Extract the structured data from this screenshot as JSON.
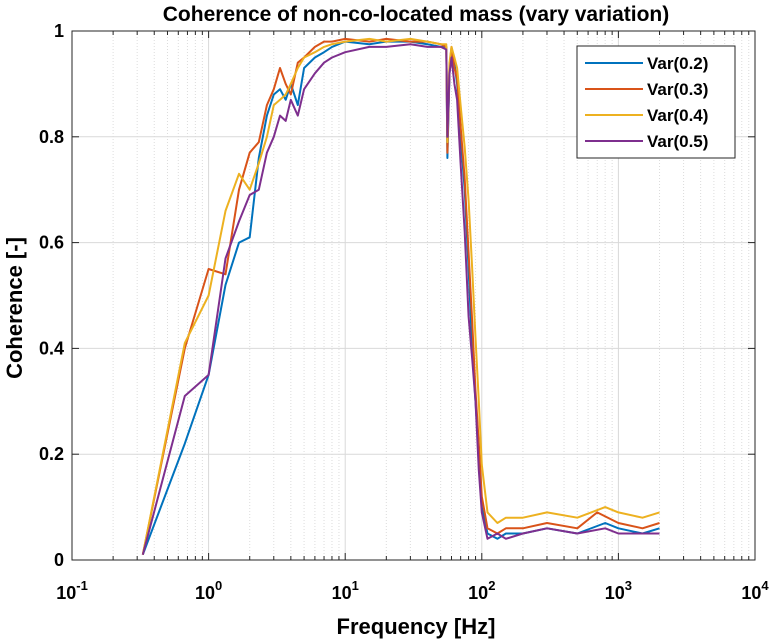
{
  "chart_data": {
    "type": "line",
    "title": "Coherence of non-co-located mass (vary variation)",
    "xlabel": "Frequency [Hz]",
    "ylabel": "Coherence [-]",
    "xscale": "log",
    "xlim": [
      0.1,
      10000
    ],
    "ylim": [
      0,
      1
    ],
    "x_ticks": [
      {
        "base": "10",
        "exp": "-1"
      },
      {
        "base": "10",
        "exp": "0"
      },
      {
        "base": "10",
        "exp": "1"
      },
      {
        "base": "10",
        "exp": "2"
      },
      {
        "base": "10",
        "exp": "3"
      },
      {
        "base": "10",
        "exp": "4"
      }
    ],
    "y_ticks": [
      "0",
      "0.2",
      "0.4",
      "0.6",
      "0.8",
      "1"
    ],
    "y_tick_values": [
      0,
      0.2,
      0.4,
      0.6,
      0.8,
      1
    ],
    "grid": true,
    "legend_position": "top-right",
    "series": [
      {
        "name": "Var(0.2)",
        "color": "#0072BD",
        "x": [
          0.33,
          0.67,
          1.0,
          1.33,
          1.67,
          2.0,
          2.33,
          2.67,
          3.0,
          3.33,
          3.67,
          4.0,
          4.5,
          5.0,
          6.0,
          7.0,
          8.0,
          10,
          15,
          20,
          30,
          40,
          50,
          55,
          56,
          58,
          60,
          63,
          66,
          70,
          75,
          80,
          85,
          90,
          95,
          100,
          110,
          130,
          150,
          200,
          300,
          500,
          800,
          1000,
          1500,
          2000
        ],
        "y": [
          0.01,
          0.22,
          0.35,
          0.52,
          0.6,
          0.61,
          0.76,
          0.84,
          0.88,
          0.89,
          0.87,
          0.9,
          0.86,
          0.93,
          0.95,
          0.96,
          0.97,
          0.98,
          0.975,
          0.98,
          0.98,
          0.975,
          0.97,
          0.97,
          0.76,
          0.92,
          0.96,
          0.94,
          0.9,
          0.8,
          0.7,
          0.55,
          0.4,
          0.3,
          0.2,
          0.1,
          0.05,
          0.04,
          0.05,
          0.05,
          0.06,
          0.05,
          0.07,
          0.06,
          0.05,
          0.06
        ]
      },
      {
        "name": "Var(0.3)",
        "color": "#D95319",
        "x": [
          0.33,
          0.67,
          1.0,
          1.33,
          1.67,
          2.0,
          2.33,
          2.67,
          3.0,
          3.33,
          3.67,
          4.0,
          4.5,
          5.0,
          6.0,
          7.0,
          8.0,
          10,
          15,
          20,
          30,
          40,
          50,
          55,
          56,
          58,
          60,
          63,
          66,
          70,
          75,
          80,
          85,
          90,
          95,
          100,
          110,
          130,
          150,
          200,
          300,
          500,
          700,
          1000,
          1500,
          2000
        ],
        "y": [
          0.01,
          0.4,
          0.55,
          0.54,
          0.7,
          0.77,
          0.79,
          0.86,
          0.89,
          0.93,
          0.9,
          0.88,
          0.94,
          0.95,
          0.97,
          0.98,
          0.98,
          0.985,
          0.98,
          0.985,
          0.98,
          0.98,
          0.975,
          0.97,
          0.77,
          0.93,
          0.97,
          0.93,
          0.91,
          0.82,
          0.72,
          0.58,
          0.45,
          0.32,
          0.22,
          0.12,
          0.06,
          0.05,
          0.06,
          0.06,
          0.07,
          0.06,
          0.09,
          0.07,
          0.06,
          0.07
        ]
      },
      {
        "name": "Var(0.4)",
        "color": "#EDB120",
        "x": [
          0.33,
          0.67,
          1.0,
          1.33,
          1.67,
          2.0,
          2.33,
          2.67,
          3.0,
          3.33,
          3.67,
          4.0,
          4.5,
          5.0,
          6.0,
          7.0,
          8.0,
          10,
          15,
          20,
          30,
          40,
          50,
          55,
          56,
          58,
          60,
          63,
          66,
          70,
          75,
          80,
          85,
          90,
          95,
          100,
          110,
          130,
          150,
          200,
          300,
          500,
          800,
          1000,
          1500,
          2000
        ],
        "y": [
          0.01,
          0.41,
          0.5,
          0.66,
          0.73,
          0.7,
          0.75,
          0.8,
          0.86,
          0.87,
          0.88,
          0.9,
          0.93,
          0.95,
          0.96,
          0.97,
          0.975,
          0.98,
          0.985,
          0.98,
          0.985,
          0.98,
          0.975,
          0.975,
          0.79,
          0.94,
          0.97,
          0.95,
          0.93,
          0.86,
          0.78,
          0.68,
          0.55,
          0.42,
          0.3,
          0.18,
          0.09,
          0.07,
          0.08,
          0.08,
          0.09,
          0.08,
          0.1,
          0.09,
          0.08,
          0.09
        ]
      },
      {
        "name": "Var(0.5)",
        "color": "#7E2F8E",
        "x": [
          0.33,
          0.67,
          1.0,
          1.33,
          1.67,
          2.0,
          2.33,
          2.67,
          3.0,
          3.33,
          3.67,
          4.0,
          4.5,
          5.0,
          6.0,
          7.0,
          8.0,
          10,
          15,
          20,
          30,
          40,
          50,
          55,
          56,
          58,
          60,
          63,
          66,
          70,
          75,
          80,
          85,
          90,
          95,
          100,
          110,
          130,
          150,
          200,
          300,
          500,
          800,
          1000,
          1500,
          2000
        ],
        "y": [
          0.01,
          0.31,
          0.35,
          0.57,
          0.64,
          0.69,
          0.7,
          0.77,
          0.8,
          0.84,
          0.83,
          0.87,
          0.84,
          0.89,
          0.92,
          0.94,
          0.95,
          0.96,
          0.97,
          0.97,
          0.975,
          0.97,
          0.97,
          0.965,
          0.8,
          0.92,
          0.95,
          0.9,
          0.87,
          0.75,
          0.62,
          0.46,
          0.38,
          0.3,
          0.17,
          0.09,
          0.04,
          0.05,
          0.04,
          0.05,
          0.06,
          0.05,
          0.06,
          0.05,
          0.05,
          0.05
        ]
      }
    ]
  }
}
